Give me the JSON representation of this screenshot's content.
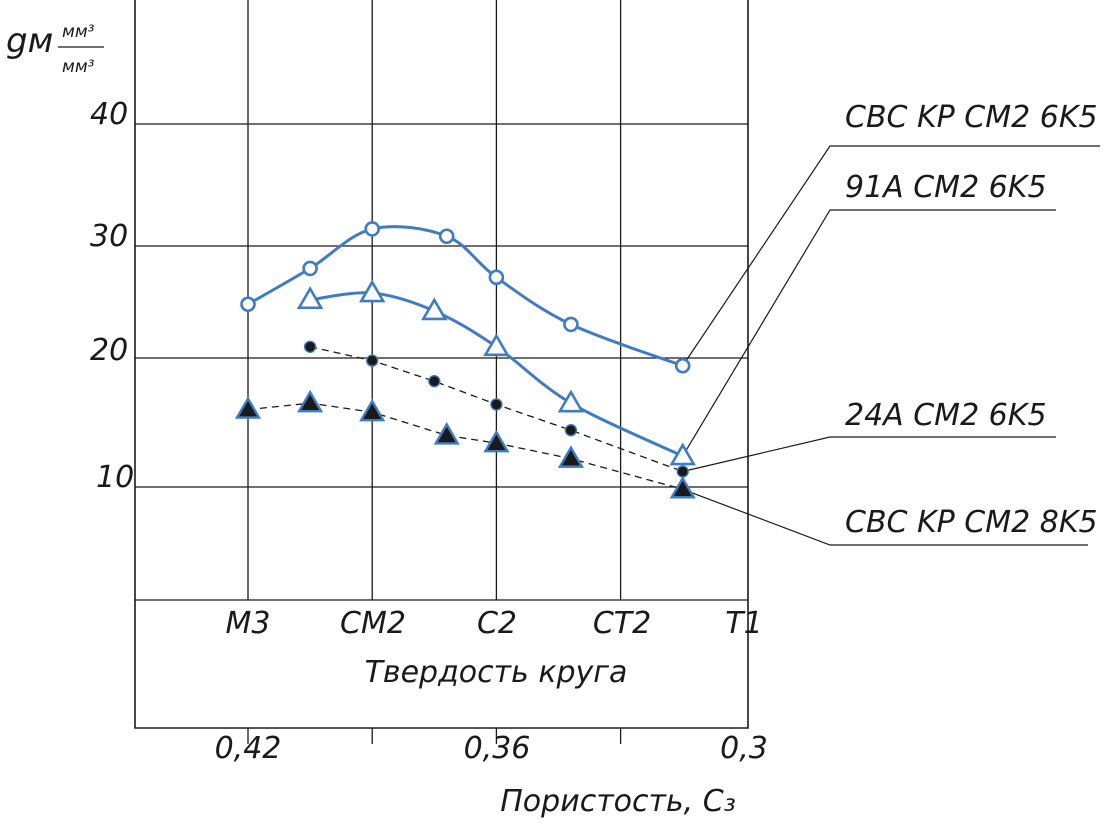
{
  "chart_data": {
    "type": "line",
    "ylabel": "gм",
    "ylabel_unit_num": "мм³",
    "ylabel_unit_den": "мм³",
    "yticks": [
      "40",
      "30",
      "20",
      "10"
    ],
    "xlabel": "Твердость круга",
    "x_categories": [
      "M3",
      "CM2",
      "C2",
      "CT2",
      "T1"
    ],
    "xlabel2": "Пористость, C₃",
    "x2_ticks": [
      "0,42",
      "0,36",
      "0,3"
    ],
    "grid": true,
    "colors": {
      "blue": "#3f7cc4",
      "black": "#1a1a1a"
    },
    "series": [
      {
        "name": "CBC KP CM2 6K5",
        "marker": "open-circle",
        "line": "solid",
        "color": "#3f7cc4",
        "points": [
          [
            0.0,
            24.8
          ],
          [
            0.5,
            28.0
          ],
          [
            1.0,
            31.4
          ],
          [
            1.6,
            30.8
          ],
          [
            2.0,
            27.2
          ],
          [
            2.6,
            23.0
          ],
          [
            3.5,
            19.4
          ]
        ]
      },
      {
        "name": "91A CM2 6K5",
        "marker": "open-triangle",
        "line": "solid",
        "color": "#3f7cc4",
        "points": [
          [
            0.5,
            25.2
          ],
          [
            1.0,
            25.8
          ],
          [
            1.5,
            24.2
          ],
          [
            2.0,
            21.0
          ],
          [
            2.6,
            16.5
          ],
          [
            3.5,
            12.4
          ]
        ]
      },
      {
        "name": "24A CM2 6K5",
        "marker": "filled-circle",
        "line": "dashed",
        "color": "#1a1a1a",
        "points": [
          [
            0.5,
            21.0
          ],
          [
            1.0,
            19.8
          ],
          [
            1.5,
            18.2
          ],
          [
            2.0,
            16.4
          ],
          [
            2.6,
            14.4
          ],
          [
            3.5,
            11.2
          ]
        ]
      },
      {
        "name": "CBC KP CM2 8K5",
        "marker": "filled-triangle",
        "line": "dashed",
        "color": "#1a1a1a",
        "points": [
          [
            0.0,
            16.0
          ],
          [
            0.5,
            16.5
          ],
          [
            1.0,
            15.8
          ],
          [
            1.6,
            14.0
          ],
          [
            2.0,
            13.4
          ],
          [
            2.6,
            12.2
          ],
          [
            3.5,
            9.8
          ]
        ]
      }
    ]
  }
}
